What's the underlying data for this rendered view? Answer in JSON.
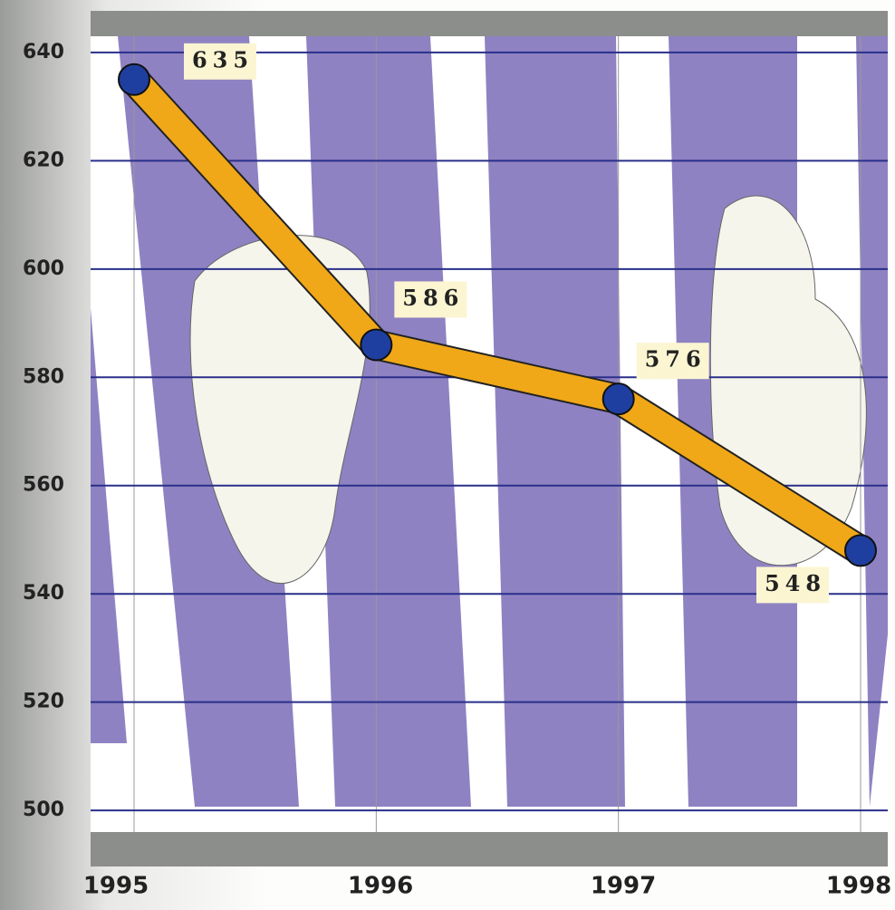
{
  "chart_data": {
    "type": "line",
    "categories": [
      "1995",
      "1996",
      "1997",
      "1998"
    ],
    "values": [
      635,
      586,
      576,
      548
    ],
    "color": "#f0a818",
    "marker_color": "#1f3fa0",
    "ylim": [
      496,
      643
    ],
    "yticks": [
      500,
      520,
      540,
      560,
      580,
      600,
      620,
      640
    ],
    "grid": true
  }
}
